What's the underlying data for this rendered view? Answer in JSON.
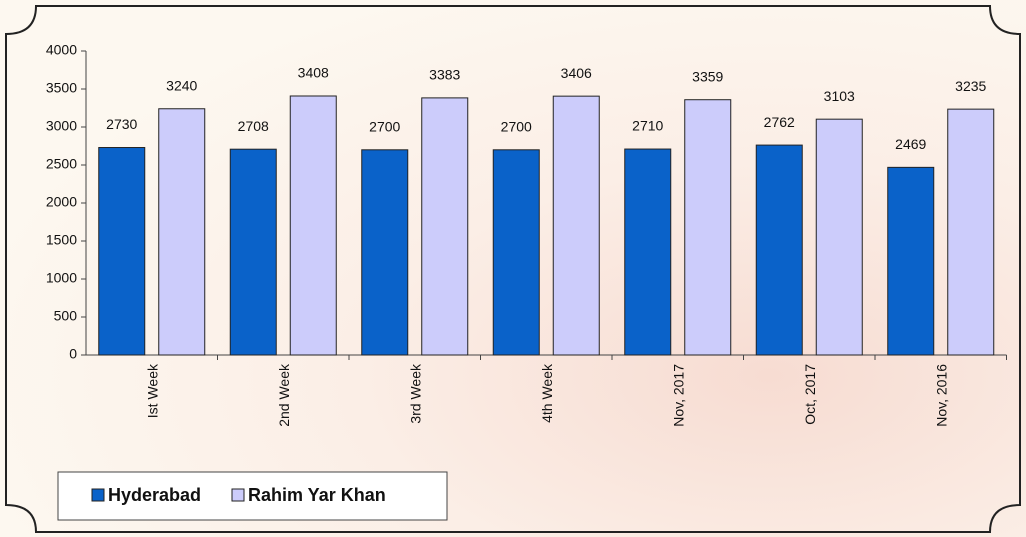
{
  "chart_data": {
    "type": "bar",
    "categories": [
      "Ist Week",
      "2nd Week",
      "3rd Week",
      "4th Week",
      "Nov, 2017",
      "Oct, 2017",
      "Nov, 2016"
    ],
    "series": [
      {
        "name": "Hyderabad",
        "color": "#0a62c9",
        "values": [
          2730,
          2708,
          2700,
          2700,
          2710,
          2762,
          2469
        ]
      },
      {
        "name": "Rahim Yar Khan",
        "color": "#ccccfb",
        "values": [
          3240,
          3408,
          3383,
          3406,
          3359,
          3103,
          3235
        ]
      }
    ],
    "ylim": [
      0,
      4000
    ],
    "yticks": [
      0,
      500,
      1000,
      1500,
      2000,
      2500,
      3000,
      3500,
      4000
    ],
    "grid": false,
    "legend": "bottom-left"
  }
}
